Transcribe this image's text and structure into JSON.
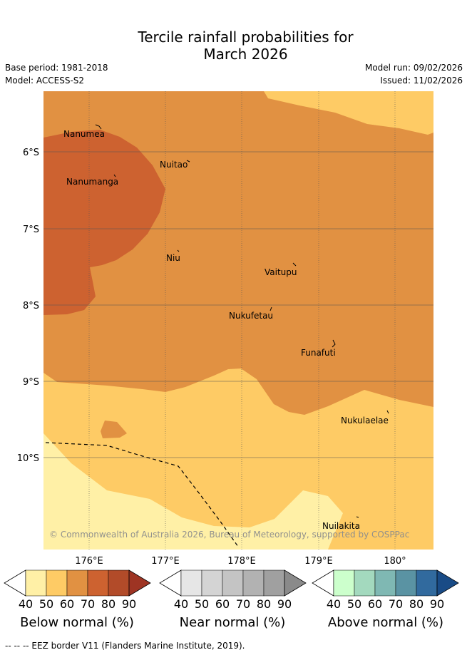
{
  "title_line1": "Tercile rainfall probabilities for",
  "title_line2": "March 2026",
  "base_period": "Base period: 1981-2018",
  "model": "Model: ACCESS-S2",
  "model_run": "Model run: 09/02/2026",
  "issued": "Issued: 11/02/2026",
  "copyright": "© Commonwealth of Australia 2026, Bureau of Meteorology, supported by COSPPac",
  "lat_labels": [
    "6°S",
    "7°S",
    "8°S",
    "9°S",
    "10°S"
  ],
  "lon_labels": [
    "176°E",
    "177°E",
    "178°E",
    "179°E",
    "180°"
  ],
  "places": [
    "Nanumea",
    "Nuitao",
    "Nanumanga",
    "Niu",
    "Vaitupu",
    "Nukufetau",
    "Funafuti",
    "Nukulaelae",
    "Nuilakita"
  ],
  "colorbars": [
    {
      "title": "Below normal (%)",
      "ticks": [
        "40",
        "50",
        "60",
        "70",
        "80",
        "90"
      ],
      "colors": [
        "#fff0a6",
        "#fecb65",
        "#e19142",
        "#cd6230",
        "#b24b29"
      ],
      "extend_color": "#9e3423"
    },
    {
      "title": "Near normal (%)",
      "ticks": [
        "40",
        "50",
        "60",
        "70",
        "80",
        "90"
      ],
      "colors": [
        "#e6e6e6",
        "#d4d4d4",
        "#c4c4c4",
        "#b2b2b2",
        "#a0a0a0"
      ],
      "extend_color": "#8a8a8a"
    },
    {
      "title": "Above normal (%)",
      "ticks": [
        "40",
        "50",
        "60",
        "70",
        "80",
        "90"
      ],
      "colors": [
        "#ccffcc",
        "#a3d9be",
        "#7fb8b3",
        "#5a93a3",
        "#316a9e"
      ],
      "extend_color": "#194b86"
    }
  ],
  "eez_note": "-- -- -- EEZ border V11 (Flanders Marine Institute, 2019).",
  "colors": {
    "bn_50": "#fecb65",
    "bn_40": "#fff0a6",
    "bn_60": "#e19142",
    "bn_70": "#cd6230",
    "grid": "#666666"
  }
}
